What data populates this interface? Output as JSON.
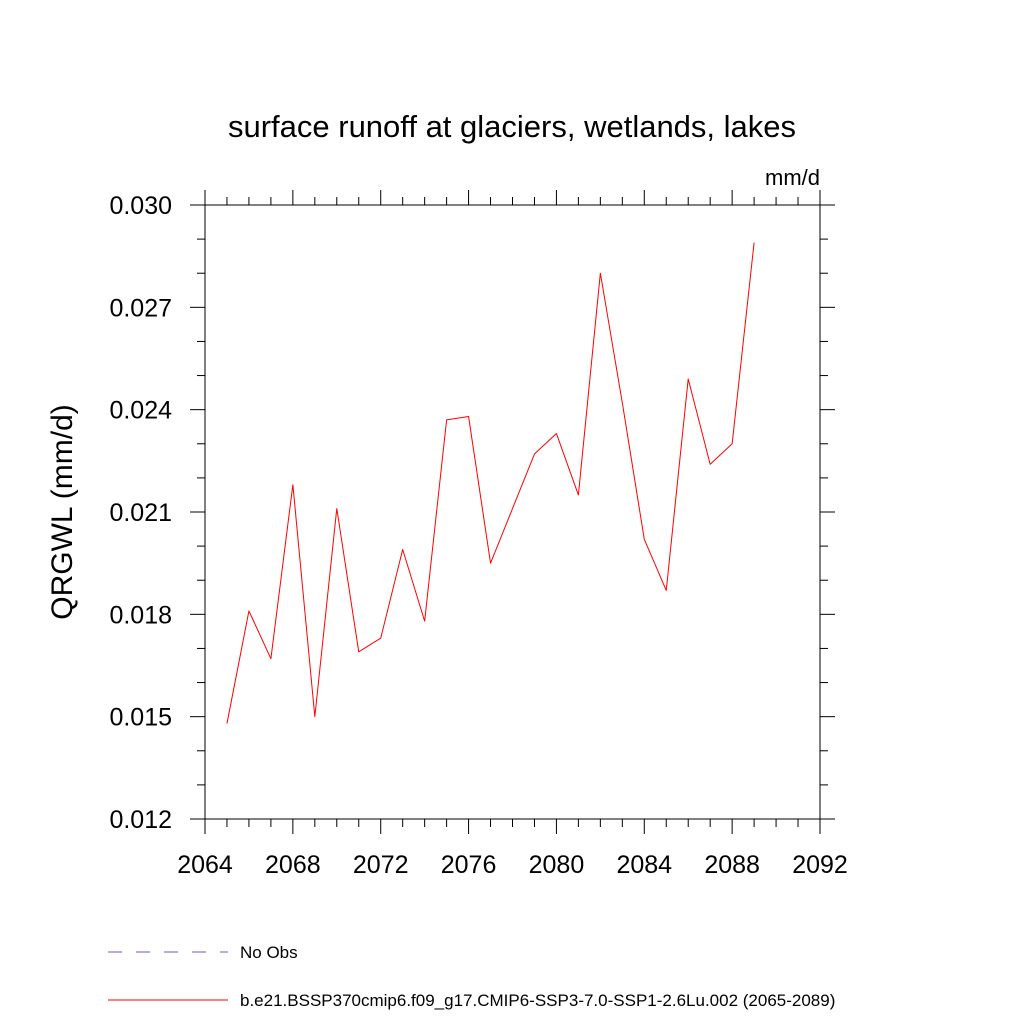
{
  "chart_data": {
    "type": "line",
    "title": "surface runoff at glaciers, wetlands, lakes",
    "units": "mm/d",
    "ylabel": "QRGWL  (mm/d)",
    "xlabel": "",
    "xlim": [
      2064,
      2092
    ],
    "ylim": [
      0.012,
      0.03
    ],
    "xticks": [
      "2064",
      "2068",
      "2072",
      "2076",
      "2080",
      "2084",
      "2088",
      "2092"
    ],
    "yticks": [
      "0.012",
      "0.015",
      "0.018",
      "0.021",
      "0.024",
      "0.027",
      "0.030"
    ],
    "grid": false,
    "legend_position": "bottom-left",
    "series": [
      {
        "name": "b.e21.BSSP370cmip6.f09_g17.CMIP6-SSP3-7.0-SSP1-2.6Lu.002 (2065-2089)",
        "color": "#ff0000",
        "dash": "solid",
        "x": [
          2065,
          2066,
          2067,
          2068,
          2069,
          2070,
          2071,
          2072,
          2073,
          2074,
          2075,
          2076,
          2077,
          2078,
          2079,
          2080,
          2081,
          2082,
          2083,
          2084,
          2085,
          2086,
          2087,
          2088,
          2089
        ],
        "y": [
          0.0148,
          0.0181,
          0.0167,
          0.0218,
          0.015,
          0.0211,
          0.0169,
          0.0173,
          0.0199,
          0.0178,
          0.0237,
          0.0238,
          0.0195,
          0.0211,
          0.0227,
          0.0233,
          0.0215,
          0.028,
          0.0242,
          0.0202,
          0.0187,
          0.0249,
          0.0224,
          0.023,
          0.0289
        ]
      }
    ],
    "legend": [
      {
        "label": "No Obs",
        "color": "#6a5acd",
        "dash": "dashed"
      },
      {
        "label": "b.e21.BSSP370cmip6.f09_g17.CMIP6-SSP3-7.0-SSP1-2.6Lu.002 (2065-2089)",
        "color": "#ff0000",
        "dash": "solid"
      }
    ]
  }
}
